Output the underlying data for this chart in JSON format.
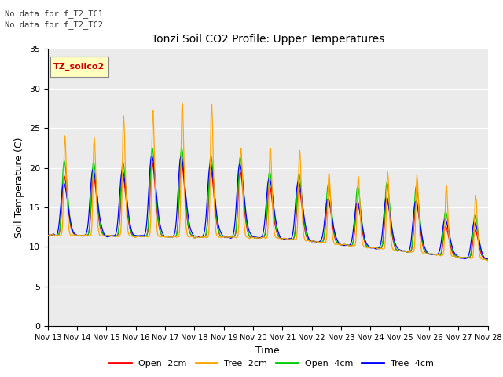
{
  "title": "Tonzi Soil CO2 Profile: Upper Temperatures",
  "xlabel": "Time",
  "ylabel": "Soil Temperature (C)",
  "ylim": [
    0,
    35
  ],
  "yticks": [
    0,
    5,
    10,
    15,
    20,
    25,
    30,
    35
  ],
  "annotation_line1": "No data for f_T2_TC1",
  "annotation_line2": "No data for f_T2_TC2",
  "inset_label": "TZ_soilco2",
  "legend_labels": [
    "Open -2cm",
    "Tree -2cm",
    "Open -4cm",
    "Tree -4cm"
  ],
  "legend_colors": [
    "#ff0000",
    "#ffa500",
    "#00cc00",
    "#0000ff"
  ],
  "line_colors": {
    "open_2cm": "#ff0000",
    "tree_2cm": "#ffa500",
    "open_4cm": "#00cc00",
    "tree_4cm": "#0000ff"
  },
  "plot_bg_color": "#ebebeb",
  "x_tick_labels": [
    "Nov 13",
    "Nov 14",
    "Nov 15",
    "Nov 16",
    "Nov 17",
    "Nov 18",
    "Nov 19",
    "Nov 20",
    "Nov 21",
    "Nov 22",
    "Nov 23",
    "Nov 24",
    "Nov 25",
    "Nov 26",
    "Nov 27",
    "Nov 28"
  ]
}
